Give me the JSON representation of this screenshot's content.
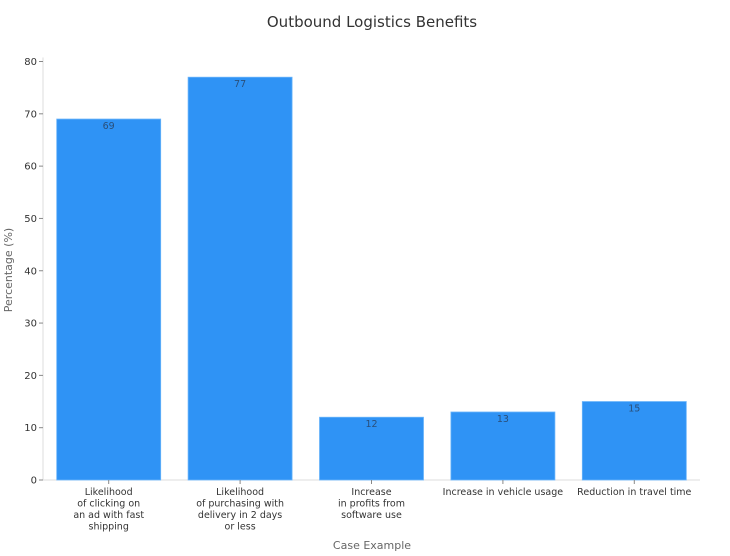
{
  "chart_data": {
    "type": "bar",
    "title": "Outbound Logistics Benefits",
    "xlabel": "Case Example",
    "ylabel": "Percentage (%)",
    "categories": [
      [
        "Likelihood",
        "of clicking on",
        "an ad with fast",
        "shipping"
      ],
      [
        "Likelihood",
        "of purchasing with",
        "delivery in 2 days",
        "or less"
      ],
      [
        "Increase",
        "in profits from",
        "software use"
      ],
      [
        "Increase in vehicle usage"
      ],
      [
        "Reduction in travel time"
      ]
    ],
    "values": [
      69,
      77,
      12,
      13,
      15
    ],
    "ylim": [
      0,
      80
    ],
    "yticks": [
      0,
      10,
      20,
      30,
      40,
      50,
      60,
      70,
      80
    ],
    "grid": false,
    "bar_color": "#2f93f5"
  }
}
